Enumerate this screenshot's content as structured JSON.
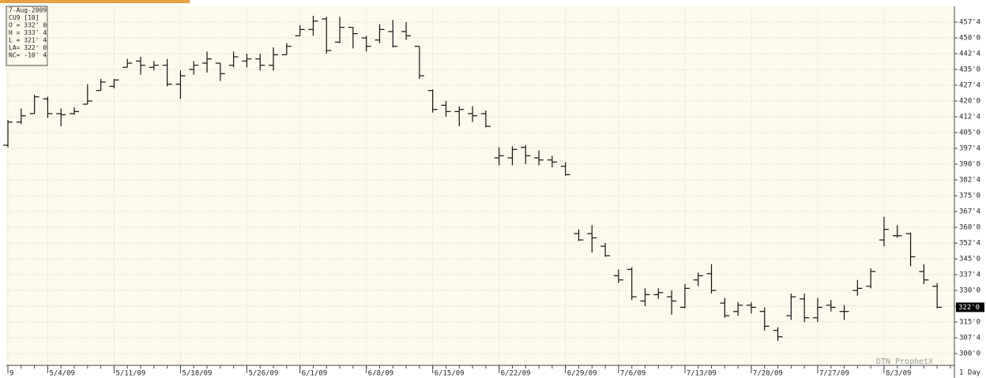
{
  "chart_data": {
    "type": "ohlc",
    "info_box": [
      "7-Aug-2009",
      "CU9 [10]",
      "O = 332' 0",
      "H = 333' 4",
      "L = 321' 4",
      "LA= 322' 0",
      "NC= -10' 4"
    ],
    "watermark": "DTN ProphetX",
    "interval": "1 Day",
    "open": [
      399,
      410,
      414,
      421,
      414,
      414,
      418.5,
      425,
      427,
      436,
      439,
      436,
      437,
      428,
      435,
      438,
      438,
      437,
      439,
      440,
      437,
      442,
      451,
      454,
      459,
      448,
      455,
      450,
      449,
      453,
      453,
      446,
      425,
      418,
      415,
      414,
      414,
      393,
      393,
      398,
      393,
      392,
      389,
      357,
      357,
      351,
      337,
      340,
      325,
      328,
      327,
      322,
      335,
      338,
      324,
      320,
      323,
      320,
      311,
      318,
      326,
      317,
      323,
      320,
      330,
      332,
      354,
      356,
      357,
      339,
      332
    ],
    "high": [
      411,
      416.5,
      423,
      422,
      416.5,
      417,
      428,
      430.5,
      430.5,
      440,
      441,
      439,
      440,
      434.5,
      439,
      443.5,
      438,
      443.5,
      442.5,
      442.5,
      445.5,
      447.5,
      456,
      460.5,
      460,
      460,
      455,
      451,
      456.5,
      458.5,
      457.5,
      446,
      425.5,
      420,
      417.5,
      417.5,
      415.5,
      398,
      398.5,
      399,
      396.5,
      394,
      391,
      359,
      361,
      352.5,
      340,
      341,
      331,
      331,
      330,
      333,
      338.5,
      342.5,
      326.5,
      324.5,
      324.5,
      322,
      312.5,
      328.5,
      328.5,
      326.5,
      325.5,
      323,
      335,
      340.5,
      365,
      361,
      357.5,
      342.5,
      333.5
    ],
    "low": [
      398,
      409,
      414,
      412,
      408,
      413.5,
      418.5,
      425,
      426,
      436,
      432.5,
      434.5,
      427,
      421,
      432.5,
      433.5,
      429.5,
      436,
      436,
      434.5,
      434.5,
      442,
      451,
      451,
      442.5,
      447.5,
      445,
      443.5,
      447.5,
      445.5,
      449,
      430.5,
      414.5,
      412.5,
      408,
      410,
      407.5,
      389.5,
      389.5,
      390,
      389.5,
      388.5,
      384.5,
      353.5,
      348,
      346,
      333.5,
      325.5,
      322.5,
      326,
      318.5,
      321.5,
      332,
      328.5,
      317,
      318,
      319,
      311,
      306,
      316,
      315,
      315,
      320,
      316,
      327.5,
      331,
      351,
      355,
      341.5,
      333,
      321.5
    ],
    "close": [
      410,
      413,
      422,
      414,
      413.5,
      415,
      420,
      429,
      430,
      438,
      437,
      437,
      428,
      432,
      437,
      440,
      433,
      441,
      440,
      437,
      442,
      446,
      454,
      458,
      444,
      455,
      452,
      446,
      454,
      446,
      451,
      432,
      416,
      415,
      416,
      413,
      408,
      394,
      397,
      394,
      392,
      391,
      385,
      354,
      355,
      346.5,
      335,
      327,
      328,
      329,
      325,
      331,
      337,
      330,
      318,
      323,
      322,
      313,
      308,
      327,
      317,
      322,
      322,
      320,
      331,
      339,
      359,
      356,
      346,
      335,
      322
    ],
    "xlim": [
      -0.12,
      71.3
    ],
    "xticks": [
      {
        "value": 0,
        "label": "9"
      },
      {
        "value": 3,
        "label": "5/4/09"
      },
      {
        "value": 8,
        "label": "5/11/09"
      },
      {
        "value": 13,
        "label": "5/18/09"
      },
      {
        "value": 18,
        "label": "5/26/09"
      },
      {
        "value": 22,
        "label": "6/1/09"
      },
      {
        "value": 27,
        "label": "6/8/09"
      },
      {
        "value": 32,
        "label": "6/15/09"
      },
      {
        "value": 37,
        "label": "6/22/09"
      },
      {
        "value": 42,
        "label": "6/29/09"
      },
      {
        "value": 46,
        "label": "7/6/09"
      },
      {
        "value": 51,
        "label": "7/13/09"
      },
      {
        "value": 56,
        "label": "7/20/09"
      },
      {
        "value": 61,
        "label": "7/27/09"
      },
      {
        "value": 66,
        "label": "8/3/09"
      }
    ],
    "ylim": [
      294.4,
      465
    ],
    "yticks": [
      {
        "value": 300,
        "label": "300'0"
      },
      {
        "value": 307.5,
        "label": "307'4"
      },
      {
        "value": 315,
        "label": "315'0"
      },
      {
        "value": 322.5,
        "label": "322'4"
      },
      {
        "value": 330,
        "label": "330'0"
      },
      {
        "value": 337.5,
        "label": "337'4"
      },
      {
        "value": 345,
        "label": "345'0"
      },
      {
        "value": 352.5,
        "label": "352'4"
      },
      {
        "value": 360,
        "label": "360'0"
      },
      {
        "value": 367.5,
        "label": "367'4"
      },
      {
        "value": 375,
        "label": "375'0"
      },
      {
        "value": 382.5,
        "label": "382'4"
      },
      {
        "value": 390,
        "label": "390'0"
      },
      {
        "value": 397.5,
        "label": "397'4"
      },
      {
        "value": 405,
        "label": "405'0"
      },
      {
        "value": 412.5,
        "label": "412'4"
      },
      {
        "value": 420,
        "label": "420'0"
      },
      {
        "value": 427.5,
        "label": "427'4"
      },
      {
        "value": 435,
        "label": "435'0"
      },
      {
        "value": 442.5,
        "label": "442'4"
      },
      {
        "value": 450,
        "label": "450'0"
      },
      {
        "value": 457.5,
        "label": "457'4"
      }
    ],
    "last_price": {
      "value": 322,
      "label": "322'0"
    },
    "grid": true,
    "color": "#111111",
    "background": "#fdf9ec"
  }
}
